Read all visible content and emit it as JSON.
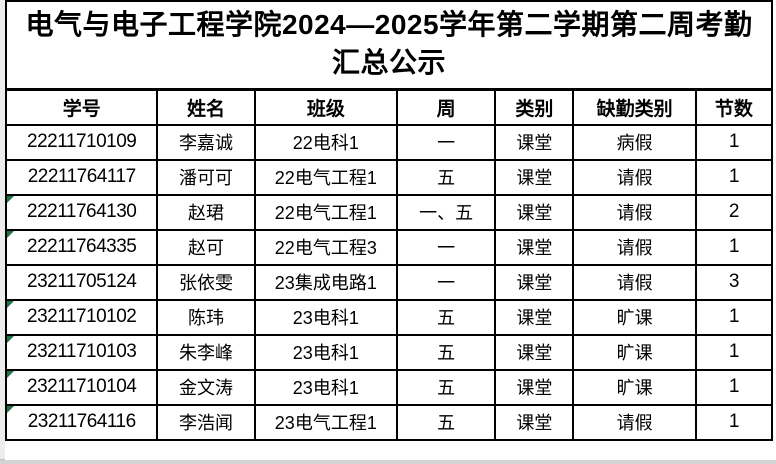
{
  "title": "电气与电子工程学院2024—2025学年第二学期第二周考勤汇总公示",
  "table": {
    "headers": [
      "学号",
      "姓名",
      "班级",
      "周",
      "类别",
      "缺勤类别",
      "节数"
    ],
    "rows": [
      {
        "id": "22211710109",
        "name": "李嘉诚",
        "class": "22电科1",
        "week": "一",
        "category": "课堂",
        "absence": "病假",
        "periods": "1",
        "flag": false
      },
      {
        "id": "22211764117",
        "name": "潘可可",
        "class": "22电气工程1",
        "week": "五",
        "category": "课堂",
        "absence": "请假",
        "periods": "1",
        "flag": false
      },
      {
        "id": "22211764130",
        "name": "赵珺",
        "class": "22电气工程1",
        "week": "一、五",
        "category": "课堂",
        "absence": "请假",
        "periods": "2",
        "flag": true
      },
      {
        "id": "22211764335",
        "name": "赵可",
        "class": "22电气工程3",
        "week": "一",
        "category": "课堂",
        "absence": "请假",
        "periods": "1",
        "flag": true
      },
      {
        "id": "23211705124",
        "name": "张依雯",
        "class": "23集成电路1",
        "week": "一",
        "category": "课堂",
        "absence": "请假",
        "periods": "3",
        "flag": false
      },
      {
        "id": "23211710102",
        "name": "陈玮",
        "class": "23电科1",
        "week": "五",
        "category": "课堂",
        "absence": "旷课",
        "periods": "1",
        "flag": true
      },
      {
        "id": "23211710103",
        "name": "朱李峰",
        "class": "23电科1",
        "week": "五",
        "category": "课堂",
        "absence": "旷课",
        "periods": "1",
        "flag": true
      },
      {
        "id": "23211710104",
        "name": "金文涛",
        "class": "23电科1",
        "week": "五",
        "category": "课堂",
        "absence": "旷课",
        "periods": "1",
        "flag": true
      },
      {
        "id": "23211764116",
        "name": "李浩闻",
        "class": "23电气工程1",
        "week": "五",
        "category": "课堂",
        "absence": "请假",
        "periods": "1",
        "flag": true
      }
    ]
  },
  "colors": {
    "triangle_green": "#217346",
    "border_black": "#000000",
    "edge_gray": "#ececec",
    "bottom_gray": "#d4d4d4"
  }
}
